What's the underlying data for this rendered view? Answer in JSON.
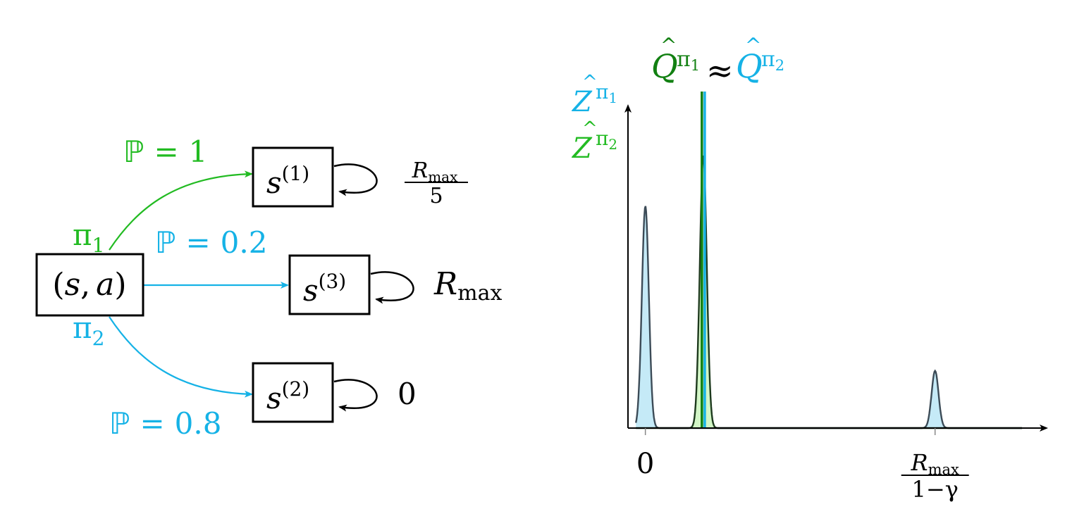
{
  "colors": {
    "green": "#22bb22",
    "dark_green": "#128012",
    "blue": "#15b2e6",
    "black": "#000000",
    "dist_blue_fill": "#bfe8f6",
    "dist_green_fill": "#cdf5c0",
    "dist_outline": "#3c4b57"
  },
  "mdp": {
    "start_node": {
      "s": "s",
      "comma": ",",
      "a": "a",
      "open": "(",
      "close": ")"
    },
    "nodes": [
      {
        "base": "s",
        "sup": "(1)",
        "loop_reward_num": "R",
        "loop_reward_num_sub": "max",
        "loop_reward_den": "5"
      },
      {
        "base": "s",
        "sup": "(3)",
        "loop_reward": "R",
        "loop_reward_sub": "max"
      },
      {
        "base": "s",
        "sup": "(2)",
        "loop_reward": "0"
      }
    ],
    "policies": {
      "pi1": {
        "symbol": "π",
        "sub": "1"
      },
      "pi2": {
        "symbol": "π",
        "sub": "2"
      }
    },
    "edges": [
      {
        "prob_symbol": "ℙ",
        "eq": "=",
        "prob": "1"
      },
      {
        "prob_symbol": "ℙ",
        "eq": "=",
        "prob": "0.2"
      },
      {
        "prob_symbol": "ℙ",
        "eq": "=",
        "prob": "0.8"
      }
    ]
  },
  "chart_data": {
    "type": "area",
    "title_left": {
      "symbol": "Q",
      "sup_symbol": "π",
      "sup_sub": "1"
    },
    "title_approx": "≈",
    "title_right": {
      "symbol": "Q",
      "sup_symbol": "π",
      "sup_sub": "2"
    },
    "y_labels": [
      {
        "symbol": "Z",
        "sup_symbol": "π",
        "sup_sub": "1"
      },
      {
        "symbol": "Z",
        "sup_symbol": "π",
        "sup_sub": "2"
      }
    ],
    "x_ticks": [
      {
        "label": "0",
        "x": 0
      },
      {
        "label_num": "R",
        "label_num_sub": "max",
        "label_den": "1−γ",
        "x": 1
      }
    ],
    "xlim": [
      -0.06,
      1.3
    ],
    "ylim": [
      0,
      1.0
    ],
    "series": [
      {
        "peaks": [
          {
            "center": 0.0,
            "height": 0.66,
            "width": 0.012
          },
          {
            "center": 1.0,
            "height": 0.17,
            "width": 0.012
          }
        ]
      },
      {
        "peaks": [
          {
            "center": 0.2,
            "height": 0.81,
            "width": 0.012
          }
        ]
      }
    ],
    "q_lines": [
      {
        "x": 0.195
      },
      {
        "x": 0.205
      }
    ]
  }
}
